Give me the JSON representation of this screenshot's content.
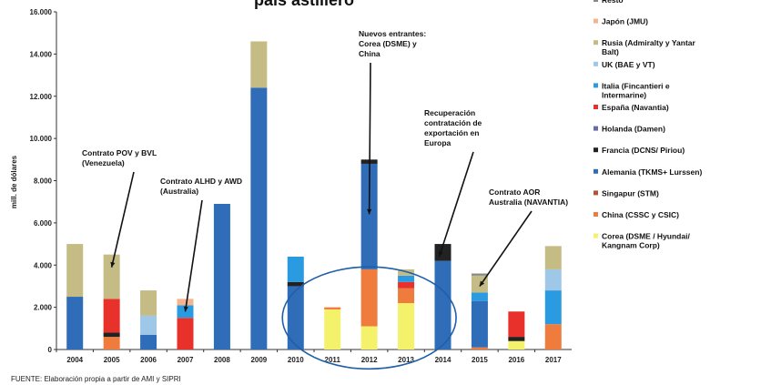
{
  "chart_data": {
    "type": "bar",
    "stacked": true,
    "title": "país astillero",
    "ylabel": "mill. de dólares",
    "ylim": [
      0,
      16000
    ],
    "yticks": [
      "0",
      "2.000",
      "4.000",
      "6.000",
      "8.000",
      "10.000",
      "12.000",
      "14.000",
      "16.000"
    ],
    "categories": [
      "2004",
      "2005",
      "2006",
      "2007",
      "2008",
      "2009",
      "2010",
      "2011",
      "2012",
      "2013",
      "2014",
      "2015",
      "2016",
      "2017"
    ],
    "legend_position": "right",
    "series": [
      {
        "name": "Corea (DSME / Hyundai/ Kangnam Corp)",
        "color": "#f4f16a",
        "values": [
          0,
          0,
          0,
          0,
          0,
          0,
          0,
          1900,
          1100,
          2200,
          0,
          0,
          400,
          0
        ]
      },
      {
        "name": "China (CSSC y CSIC)",
        "color": "#ef7b3c",
        "values": [
          0,
          600,
          0,
          0,
          0,
          0,
          0,
          100,
          2700,
          700,
          0,
          100,
          0,
          1200
        ]
      },
      {
        "name": "Singapur (STM)",
        "color": "#b5533a",
        "values": [
          0,
          0,
          0,
          0,
          0,
          0,
          0,
          0,
          0,
          0,
          0,
          0,
          0,
          0
        ]
      },
      {
        "name": "Alemania (TKMS+ Lurssen)",
        "color": "#2f6db8",
        "values": [
          2500,
          0,
          700,
          0,
          6900,
          12400,
          3000,
          0,
          5000,
          0,
          4200,
          2200,
          0,
          0
        ]
      },
      {
        "name": "Francia (DCNS/ Piriou)",
        "color": "#222222",
        "values": [
          0,
          200,
          0,
          0,
          0,
          0,
          200,
          0,
          200,
          0,
          800,
          0,
          200,
          0
        ]
      },
      {
        "name": "Holanda (Damen)",
        "color": "#6a6aa8",
        "values": [
          0,
          0,
          0,
          0,
          0,
          0,
          0,
          0,
          0,
          0,
          0,
          0,
          0,
          0
        ]
      },
      {
        "name": "España (Navantia)",
        "color": "#e8312b",
        "values": [
          0,
          1600,
          0,
          1500,
          0,
          0,
          0,
          0,
          0,
          300,
          0,
          0,
          1200,
          0
        ]
      },
      {
        "name": "Italia (Fincantieri e Intermarine)",
        "color": "#2a9be0",
        "values": [
          0,
          0,
          0,
          600,
          0,
          0,
          1200,
          0,
          0,
          300,
          0,
          400,
          0,
          1600
        ]
      },
      {
        "name": "UK (BAE y VT)",
        "color": "#9fc7e8",
        "values": [
          0,
          0,
          900,
          0,
          0,
          0,
          0,
          0,
          0,
          0,
          0,
          0,
          0,
          1000
        ]
      },
      {
        "name": "Rusia (Admiralty y Yantar Balt)",
        "color": "#c4bc84",
        "values": [
          2500,
          2100,
          1200,
          0,
          0,
          2200,
          0,
          0,
          0,
          300,
          0,
          800,
          0,
          1100
        ]
      },
      {
        "name": "Japón (JMU)",
        "color": "#f6b48c",
        "values": [
          0,
          0,
          0,
          300,
          0,
          0,
          0,
          0,
          0,
          0,
          0,
          0,
          0,
          0
        ]
      },
      {
        "name": "Resto",
        "color": "#888888",
        "values": [
          0,
          0,
          0,
          0,
          0,
          0,
          0,
          0,
          0,
          0,
          0,
          100,
          0,
          0
        ]
      }
    ],
    "annotations": [
      {
        "lines": [
          "Contrato POV y BVL",
          "(Venezuela)"
        ],
        "points_to": "2005"
      },
      {
        "lines": [
          "Contrato ALHD y AWD",
          "(Australia)"
        ],
        "points_to": "2007"
      },
      {
        "lines": [
          "Nuevos entrantes:",
          "Corea (DSME) y",
          "China"
        ],
        "points_to": "2012"
      },
      {
        "lines": [
          "Recuperación",
          "contratación de",
          "exportación en",
          "Europa"
        ],
        "points_to": "2014"
      },
      {
        "lines": [
          "Contrato AOR",
          "Australia (NAVANTIA)"
        ],
        "points_to": "2015"
      }
    ],
    "highlight": {
      "from": "2011",
      "to": "2013",
      "shape": "ellipse",
      "color": "#1f5fa8"
    }
  },
  "source": "FUENTE: Elaboración propia a partir de AMI y SIPRI"
}
